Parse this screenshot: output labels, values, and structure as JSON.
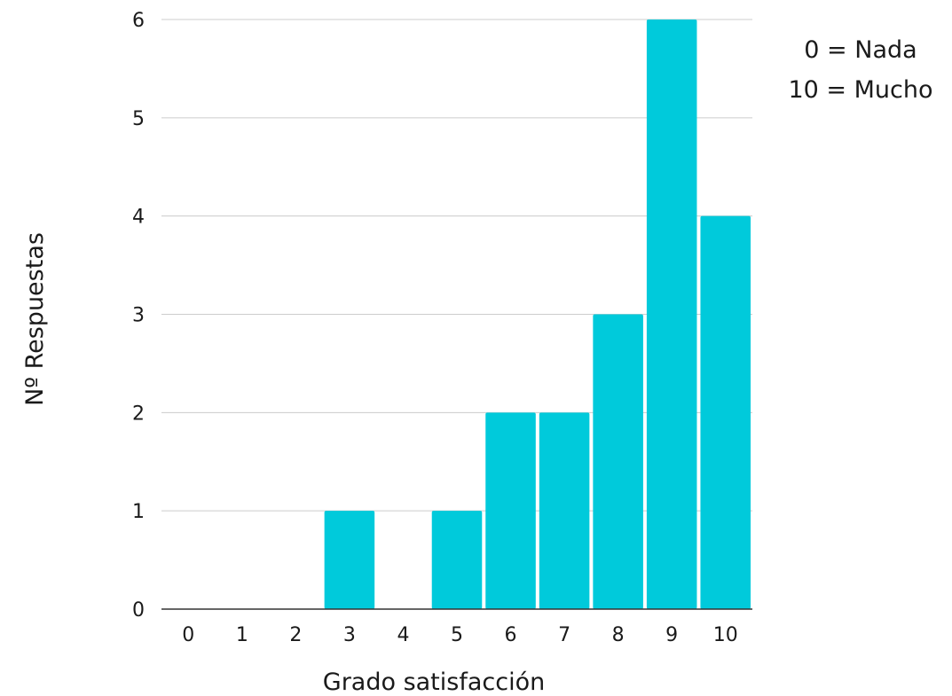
{
  "chart_data": {
    "type": "bar",
    "categories": [
      "0",
      "1",
      "2",
      "3",
      "4",
      "5",
      "6",
      "7",
      "8",
      "9",
      "10"
    ],
    "values": [
      0,
      0,
      0,
      1,
      0,
      1,
      2,
      2,
      3,
      6,
      4
    ],
    "title": "",
    "xlabel": "Grado satisfacción",
    "ylabel": "Nº Respuestas",
    "ylim": [
      0,
      6
    ],
    "yticks": [
      "0",
      "1",
      "2",
      "3",
      "4",
      "5",
      "6"
    ],
    "grid": "horizontal",
    "annotations": [
      "0 = Nada",
      "10 = Mucho"
    ],
    "colors": {
      "bar": "#00cadb",
      "grid": "#cccccc",
      "axis": "#333333"
    }
  }
}
